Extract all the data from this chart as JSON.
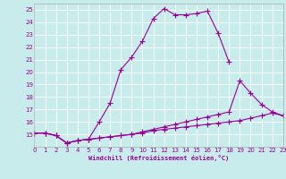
{
  "xlabel": "Windchill (Refroidissement éolien,°C)",
  "bg_color": "#c8ecec",
  "line_color": "#990099",
  "xlim": [
    0,
    23
  ],
  "ylim": [
    14,
    25.5
  ],
  "yticks": [
    15,
    16,
    17,
    18,
    19,
    20,
    21,
    22,
    23,
    24,
    25
  ],
  "xticks": [
    0,
    1,
    2,
    3,
    4,
    5,
    6,
    7,
    8,
    9,
    10,
    11,
    12,
    13,
    14,
    15,
    16,
    17,
    18,
    19,
    20,
    21,
    22,
    23
  ],
  "line1_x": [
    0,
    1,
    2,
    3,
    4,
    5,
    6,
    7,
    8,
    9,
    10,
    11,
    12,
    13,
    14,
    15,
    16,
    17,
    18
  ],
  "line1_y": [
    15.1,
    15.1,
    14.9,
    14.3,
    14.5,
    14.6,
    16.0,
    17.5,
    20.2,
    21.2,
    22.5,
    24.3,
    25.1,
    24.6,
    24.6,
    24.7,
    24.9,
    23.1,
    20.8
  ],
  "line2_x": [
    0,
    1,
    2,
    3,
    4,
    5,
    6,
    7,
    8,
    9,
    10,
    11,
    12,
    13,
    14,
    15,
    16,
    17,
    18,
    19,
    20,
    21,
    22,
    23
  ],
  "line2_y": [
    15.1,
    15.1,
    14.9,
    14.3,
    14.5,
    14.6,
    14.7,
    14.8,
    14.9,
    15.0,
    15.2,
    15.4,
    15.6,
    15.8,
    16.0,
    16.2,
    16.4,
    16.6,
    16.8,
    19.3,
    18.3,
    17.4,
    16.8,
    16.5
  ],
  "line3_x": [
    0,
    1,
    2,
    3,
    4,
    5,
    6,
    7,
    8,
    9,
    10,
    11,
    12,
    13,
    14,
    15,
    16,
    17,
    18,
    19,
    20,
    21,
    22,
    23
  ],
  "line3_y": [
    15.1,
    15.1,
    14.9,
    14.3,
    14.5,
    14.6,
    14.7,
    14.8,
    14.9,
    15.0,
    15.1,
    15.3,
    15.4,
    15.5,
    15.6,
    15.7,
    15.8,
    15.9,
    16.0,
    16.1,
    16.3,
    16.5,
    16.7,
    16.5
  ]
}
